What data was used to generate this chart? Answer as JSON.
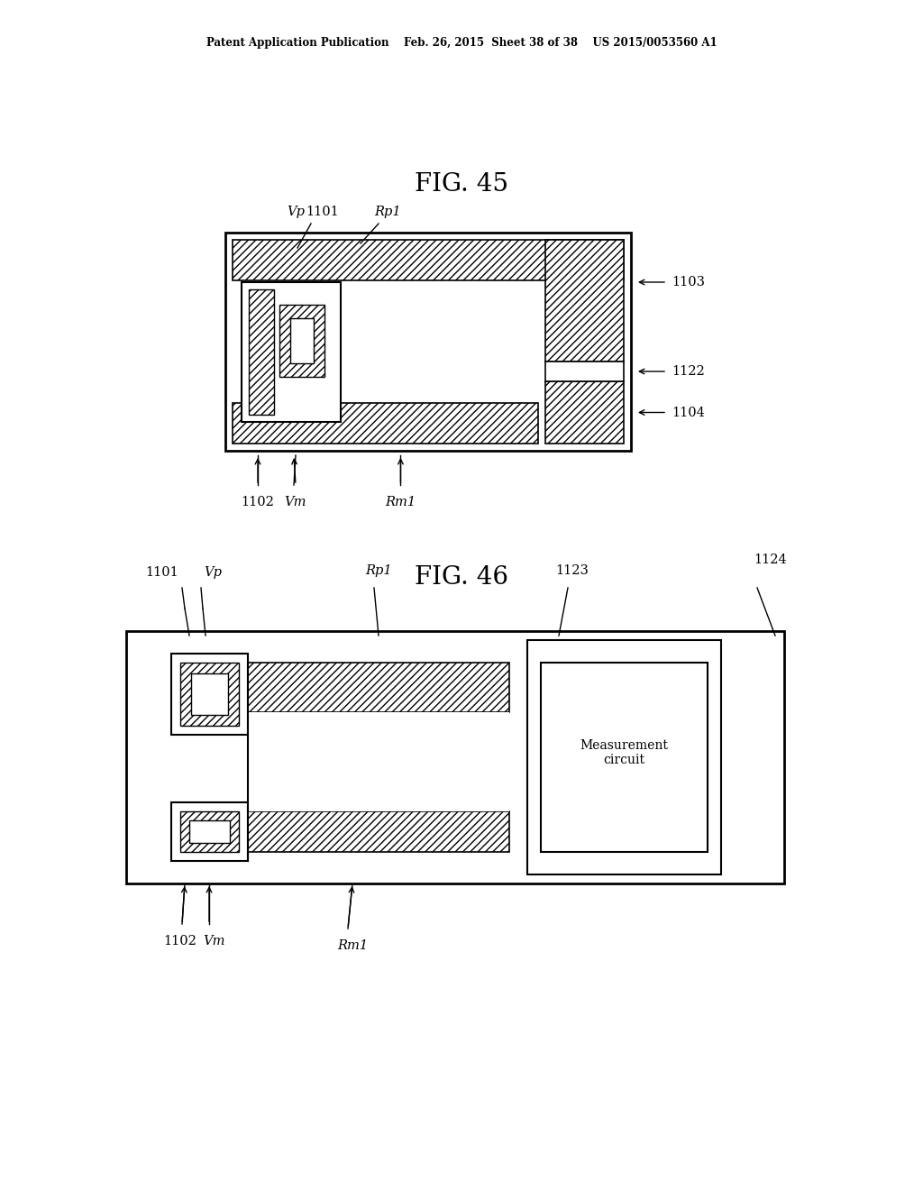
{
  "bg_color": "#ffffff",
  "header_text": "Patent Application Publication    Feb. 26, 2015  Sheet 38 of 38    US 2015/0053560 A1",
  "fig45_title": "FIG. 45",
  "fig46_title": "FIG. 46",
  "line_color": "#000000"
}
